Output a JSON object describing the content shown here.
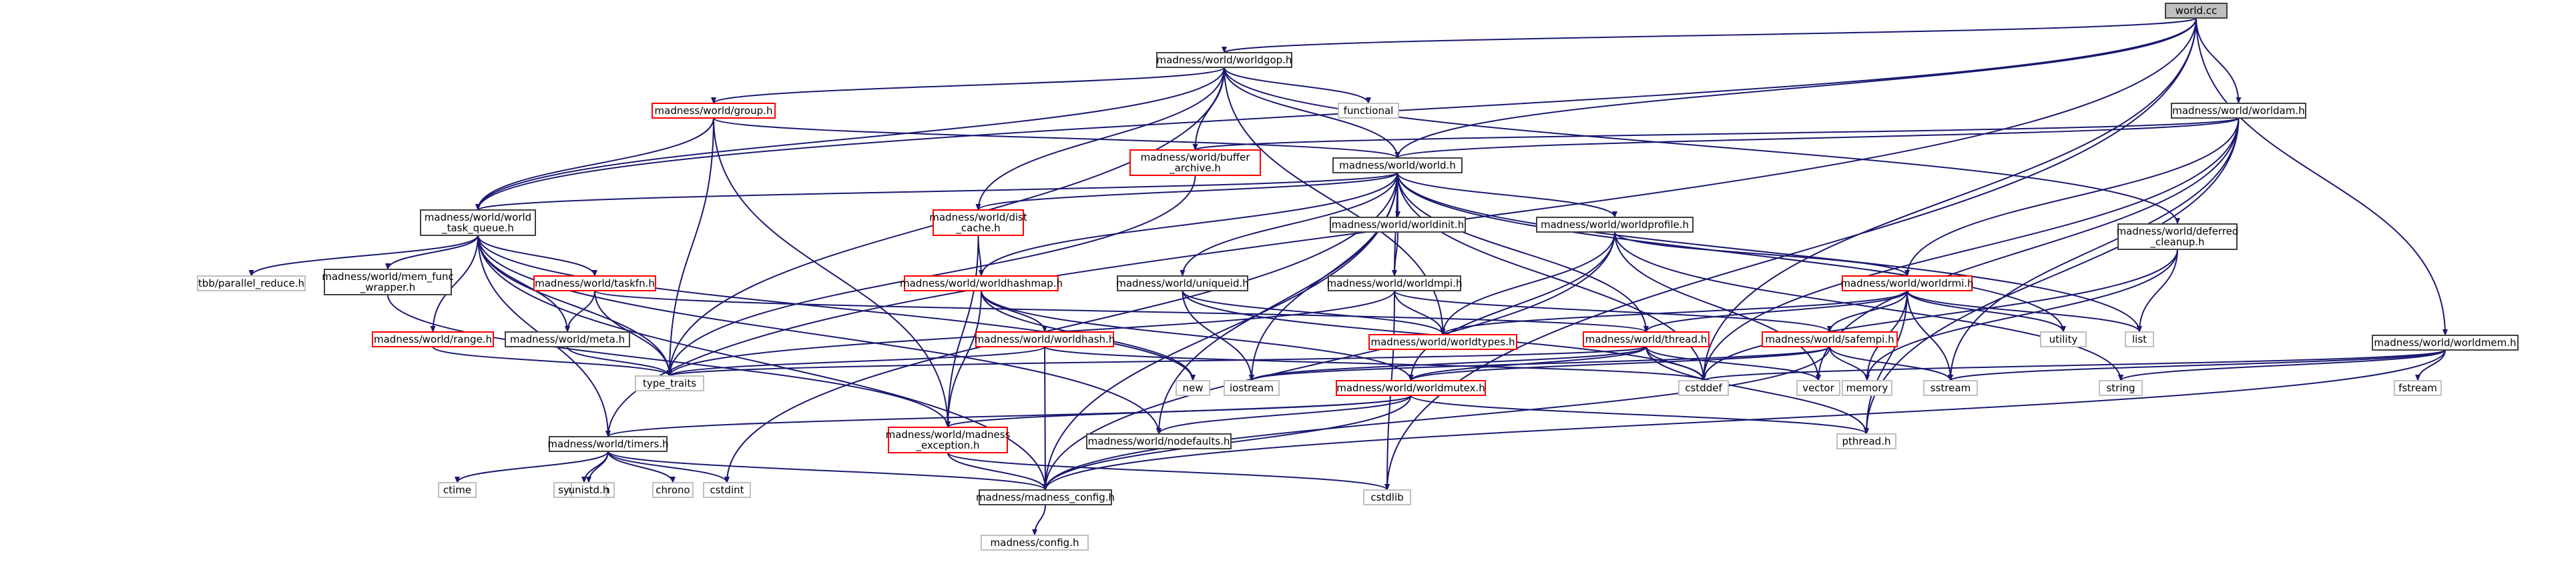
{
  "diagram": {
    "type": "include-dependency-graph",
    "nodes": [
      {
        "id": "worldcc",
        "lines": [
          "world.cc"
        ],
        "style": "current"
      },
      {
        "id": "worldgop",
        "lines": [
          "madness/world/worldgop.h"
        ],
        "style": "black"
      },
      {
        "id": "worldam",
        "lines": [
          "madness/world/worldam.h"
        ],
        "style": "black"
      },
      {
        "id": "worldmem",
        "lines": [
          "madness/world/worldmem.h"
        ],
        "style": "black"
      },
      {
        "id": "group",
        "lines": [
          "madness/world/group.h"
        ],
        "style": "red"
      },
      {
        "id": "functional",
        "lines": [
          "functional"
        ],
        "style": "gray"
      },
      {
        "id": "buffer_archive",
        "lines": [
          "madness/world/buffer",
          "_archive.h"
        ],
        "style": "red"
      },
      {
        "id": "world_h",
        "lines": [
          "madness/world/world.h"
        ],
        "style": "black"
      },
      {
        "id": "world_task_queue",
        "lines": [
          "madness/world/world",
          "_task_queue.h"
        ],
        "style": "black"
      },
      {
        "id": "dist_cache",
        "lines": [
          "madness/world/dist",
          "_cache.h"
        ],
        "style": "red"
      },
      {
        "id": "worldinit",
        "lines": [
          "madness/world/worldinit.h"
        ],
        "style": "black"
      },
      {
        "id": "worldprofile",
        "lines": [
          "madness/world/worldprofile.h"
        ],
        "style": "black"
      },
      {
        "id": "deferred_cleanup",
        "lines": [
          "madness/world/deferred",
          "_cleanup.h"
        ],
        "style": "black"
      },
      {
        "id": "tbb",
        "lines": [
          "tbb/parallel_reduce.h"
        ],
        "style": "gray"
      },
      {
        "id": "mem_func_wrapper",
        "lines": [
          "madness/world/mem_func",
          "_wrapper.h"
        ],
        "style": "black"
      },
      {
        "id": "taskfn",
        "lines": [
          "madness/world/taskfn.h"
        ],
        "style": "red"
      },
      {
        "id": "worldhashmap",
        "lines": [
          "madness/world/worldhashmap.h"
        ],
        "style": "red"
      },
      {
        "id": "uniqueid",
        "lines": [
          "madness/world/uniqueid.h"
        ],
        "style": "black"
      },
      {
        "id": "worldmpi",
        "lines": [
          "madness/world/worldmpi.h"
        ],
        "style": "black"
      },
      {
        "id": "worldrmi",
        "lines": [
          "madness/world/worldrmi.h"
        ],
        "style": "red"
      },
      {
        "id": "range",
        "lines": [
          "madness/world/range.h"
        ],
        "style": "red"
      },
      {
        "id": "meta",
        "lines": [
          "madness/world/meta.h"
        ],
        "style": "black"
      },
      {
        "id": "worldhash",
        "lines": [
          "madness/world/worldhash.h"
        ],
        "style": "red"
      },
      {
        "id": "worldtypes",
        "lines": [
          "madness/world/worldtypes.h"
        ],
        "style": "red"
      },
      {
        "id": "thread",
        "lines": [
          "madness/world/thread.h"
        ],
        "style": "red"
      },
      {
        "id": "safempi",
        "lines": [
          "madness/world/safempi.h"
        ],
        "style": "red"
      },
      {
        "id": "utility",
        "lines": [
          "utility"
        ],
        "style": "gray"
      },
      {
        "id": "list",
        "lines": [
          "list"
        ],
        "style": "gray"
      },
      {
        "id": "type_traits",
        "lines": [
          "type_traits"
        ],
        "style": "gray"
      },
      {
        "id": "new",
        "lines": [
          "new"
        ],
        "style": "gray"
      },
      {
        "id": "iostream",
        "lines": [
          "iostream"
        ],
        "style": "gray"
      },
      {
        "id": "cstddef",
        "lines": [
          "cstddef"
        ],
        "style": "gray"
      },
      {
        "id": "vector",
        "lines": [
          "vector"
        ],
        "style": "gray"
      },
      {
        "id": "memory",
        "lines": [
          "memory"
        ],
        "style": "gray"
      },
      {
        "id": "sstream",
        "lines": [
          "sstream"
        ],
        "style": "gray"
      },
      {
        "id": "string",
        "lines": [
          "string"
        ],
        "style": "gray"
      },
      {
        "id": "fstream",
        "lines": [
          "fstream"
        ],
        "style": "gray"
      },
      {
        "id": "worldmutex",
        "lines": [
          "madness/world/worldmutex.h"
        ],
        "style": "red"
      },
      {
        "id": "timers",
        "lines": [
          "madness/world/timers.h"
        ],
        "style": "black"
      },
      {
        "id": "madness_exception",
        "lines": [
          "madness/world/madness",
          "_exception.h"
        ],
        "style": "red"
      },
      {
        "id": "nodefaults",
        "lines": [
          "madness/world/nodefaults.h"
        ],
        "style": "black"
      },
      {
        "id": "pthread",
        "lines": [
          "pthread.h"
        ],
        "style": "gray"
      },
      {
        "id": "ctime",
        "lines": [
          "ctime"
        ],
        "style": "gray"
      },
      {
        "id": "systime",
        "lines": [
          "sys/time.h"
        ],
        "style": "gray"
      },
      {
        "id": "unistd",
        "lines": [
          "unistd.h"
        ],
        "style": "gray"
      },
      {
        "id": "chrono",
        "lines": [
          "chrono"
        ],
        "style": "gray"
      },
      {
        "id": "cstdint",
        "lines": [
          "cstdint"
        ],
        "style": "gray"
      },
      {
        "id": "madness_config",
        "lines": [
          "madness/madness_config.h"
        ],
        "style": "black"
      },
      {
        "id": "cstdlib",
        "lines": [
          "cstdlib"
        ],
        "style": "gray"
      },
      {
        "id": "config",
        "lines": [
          "madness/config.h"
        ],
        "style": "gray"
      }
    ],
    "edges": [
      [
        "worldcc",
        "worldgop"
      ],
      [
        "worldcc",
        "worldam"
      ],
      [
        "worldcc",
        "worldmem"
      ],
      [
        "worldcc",
        "world_h"
      ],
      [
        "worldcc",
        "world_task_queue"
      ],
      [
        "worldcc",
        "timers"
      ],
      [
        "worldcc",
        "cstddef"
      ],
      [
        "worldcc",
        "cstdlib"
      ],
      [
        "worldgop",
        "group"
      ],
      [
        "worldgop",
        "functional"
      ],
      [
        "worldgop",
        "buffer_archive"
      ],
      [
        "worldgop",
        "world_h"
      ],
      [
        "worldgop",
        "world_task_queue"
      ],
      [
        "worldgop",
        "dist_cache"
      ],
      [
        "worldgop",
        "deferred_cleanup"
      ],
      [
        "worldgop",
        "worldtypes"
      ],
      [
        "worldgop",
        "type_traits"
      ],
      [
        "worldam",
        "world_h"
      ],
      [
        "worldam",
        "buffer_archive"
      ],
      [
        "worldam",
        "worldrmi"
      ],
      [
        "worldam",
        "cstddef"
      ],
      [
        "worldam",
        "vector"
      ],
      [
        "worldam",
        "sstream"
      ],
      [
        "worldam",
        "pthread"
      ],
      [
        "worldmem",
        "sstream"
      ],
      [
        "worldmem",
        "string"
      ],
      [
        "worldmem",
        "fstream"
      ],
      [
        "worldmem",
        "madness_config"
      ],
      [
        "worldmem",
        "cstddef"
      ],
      [
        "group",
        "world_h"
      ],
      [
        "group",
        "world_task_queue"
      ],
      [
        "group",
        "madness_exception"
      ],
      [
        "group",
        "type_traits"
      ],
      [
        "buffer_archive",
        "type_traits"
      ],
      [
        "world_h",
        "world_task_queue"
      ],
      [
        "world_h",
        "dist_cache"
      ],
      [
        "world_h",
        "worldhashmap"
      ],
      [
        "world_h",
        "uniqueid"
      ],
      [
        "world_h",
        "worldinit"
      ],
      [
        "world_h",
        "worldmpi"
      ],
      [
        "world_h",
        "worldprofile"
      ],
      [
        "world_h",
        "thread"
      ],
      [
        "world_h",
        "iostream"
      ],
      [
        "world_h",
        "list"
      ],
      [
        "world_h",
        "utility"
      ],
      [
        "world_h",
        "cstddef"
      ],
      [
        "world_h",
        "cstdint"
      ],
      [
        "world_h",
        "nodefaults"
      ],
      [
        "world_h",
        "madness_config"
      ],
      [
        "world_task_queue",
        "tbb"
      ],
      [
        "world_task_queue",
        "mem_func_wrapper"
      ],
      [
        "world_task_queue",
        "taskfn"
      ],
      [
        "world_task_queue",
        "range"
      ],
      [
        "world_task_queue",
        "meta"
      ],
      [
        "world_task_queue",
        "type_traits"
      ],
      [
        "world_task_queue",
        "new"
      ],
      [
        "world_task_queue",
        "timers"
      ],
      [
        "world_task_queue",
        "madness_config"
      ],
      [
        "world_task_queue",
        "nodefaults"
      ],
      [
        "dist_cache",
        "worldhashmap"
      ],
      [
        "dist_cache",
        "madness_exception"
      ],
      [
        "worldinit",
        "worldmpi"
      ],
      [
        "worldprofile",
        "worldrmi"
      ],
      [
        "worldprofile",
        "worldtypes"
      ],
      [
        "worldprofile",
        "worldmutex"
      ],
      [
        "worldprofile",
        "vector"
      ],
      [
        "worldprofile",
        "string"
      ],
      [
        "worldprofile",
        "madness_config"
      ],
      [
        "deferred_cleanup",
        "list"
      ],
      [
        "deferred_cleanup",
        "memory"
      ],
      [
        "deferred_cleanup",
        "cstddef"
      ],
      [
        "mem_func_wrapper",
        "madness_exception"
      ],
      [
        "taskfn",
        "meta"
      ],
      [
        "taskfn",
        "thread"
      ],
      [
        "taskfn",
        "type_traits"
      ],
      [
        "worldhashmap",
        "worldhash"
      ],
      [
        "worldhashmap",
        "worldmutex"
      ],
      [
        "worldhashmap",
        "madness_exception"
      ],
      [
        "worldhashmap",
        "new"
      ],
      [
        "uniqueid",
        "worldtypes"
      ],
      [
        "uniqueid",
        "iostream"
      ],
      [
        "uniqueid",
        "cstddef"
      ],
      [
        "worldmpi",
        "safempi"
      ],
      [
        "worldmpi",
        "worldtypes"
      ],
      [
        "worldmpi",
        "type_traits"
      ],
      [
        "worldmpi",
        "cstdlib"
      ],
      [
        "worldrmi",
        "worldtypes"
      ],
      [
        "worldrmi",
        "thread"
      ],
      [
        "worldrmi",
        "safempi"
      ],
      [
        "worldrmi",
        "utility"
      ],
      [
        "worldrmi",
        "list"
      ],
      [
        "worldrmi",
        "memory"
      ],
      [
        "worldrmi",
        "sstream"
      ],
      [
        "worldrmi",
        "pthread"
      ],
      [
        "range",
        "type_traits"
      ],
      [
        "meta",
        "type_traits"
      ],
      [
        "worldhash",
        "type_traits"
      ],
      [
        "worldhash",
        "madness_config"
      ],
      [
        "worldhash",
        "cstddef"
      ],
      [
        "thread",
        "worldmutex"
      ],
      [
        "thread",
        "type_traits"
      ],
      [
        "thread",
        "cstddef"
      ],
      [
        "thread",
        "pthread"
      ],
      [
        "thread",
        "vector"
      ],
      [
        "thread",
        "iostream"
      ],
      [
        "safempi",
        "worldmutex"
      ],
      [
        "safempi",
        "memory"
      ],
      [
        "safempi",
        "sstream"
      ],
      [
        "safempi",
        "iostream"
      ],
      [
        "safempi",
        "madness_config"
      ],
      [
        "worldmutex",
        "timers"
      ],
      [
        "worldmutex",
        "madness_exception"
      ],
      [
        "worldmutex",
        "nodefaults"
      ],
      [
        "worldmutex",
        "madness_config"
      ],
      [
        "worldmutex",
        "pthread"
      ],
      [
        "timers",
        "ctime"
      ],
      [
        "timers",
        "systime"
      ],
      [
        "timers",
        "unistd"
      ],
      [
        "timers",
        "chrono"
      ],
      [
        "timers",
        "cstdint"
      ],
      [
        "timers",
        "madness_config"
      ],
      [
        "madness_exception",
        "madness_config"
      ],
      [
        "madness_exception",
        "cstdlib"
      ],
      [
        "madness_config",
        "config"
      ]
    ]
  }
}
